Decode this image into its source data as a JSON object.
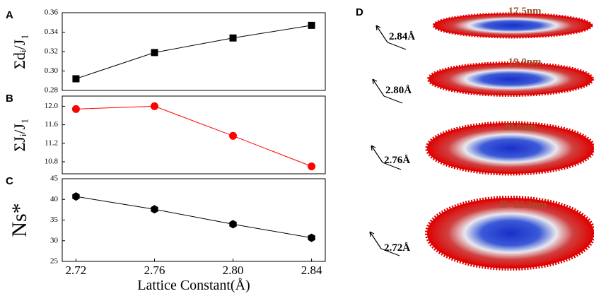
{
  "chart_data": [
    {
      "type": "line",
      "panel_label": "A",
      "ylabel": "Σdᵢ/J₁",
      "x": [
        2.72,
        2.76,
        2.8,
        2.84
      ],
      "values": [
        0.292,
        0.319,
        0.334,
        0.347
      ],
      "color": "#000000",
      "marker": "square",
      "xlim": [
        2.713,
        2.847
      ],
      "ylim": [
        0.28,
        0.36
      ],
      "yticks": [
        0.28,
        {
          "value": 0.3,
          "label": "0.30"
        },
        0.32,
        0.34,
        0.36
      ]
    },
    {
      "type": "line",
      "panel_label": "B",
      "ylabel": "ΣJᵢ/J₁",
      "x": [
        2.72,
        2.76,
        2.8,
        2.84
      ],
      "values": [
        11.94,
        12.0,
        11.36,
        10.7
      ],
      "color": "#ff0000",
      "marker": "circle",
      "xlim": [
        2.713,
        2.847
      ],
      "ylim": [
        10.54,
        12.22
      ],
      "yticks": [
        10.8,
        11.2,
        11.6,
        {
          "value": 12,
          "label": "12.0"
        }
      ]
    },
    {
      "type": "line",
      "panel_label": "C",
      "ylabel": "Ns*",
      "xlabel": "Lattice Constant(Å)",
      "x": [
        2.72,
        2.76,
        2.8,
        2.84
      ],
      "values": [
        40.7,
        37.6,
        34.0,
        30.7
      ],
      "color": "#000000",
      "marker": "hexagon",
      "xlim": [
        2.713,
        2.847
      ],
      "ylim": [
        25,
        45
      ],
      "yticks": [
        25,
        30,
        35,
        40,
        45
      ],
      "xticks": [
        2.72,
        2.76,
        {
          "value": 2.8,
          "label": "2.80"
        },
        2.84
      ]
    }
  ],
  "panel_d": {
    "label": "D",
    "items": [
      {
        "size": "17.5nm",
        "lattice": "2.84Å"
      },
      {
        "size": "19.0nm",
        "lattice": "2.80Å"
      },
      {
        "size": "20.8nm",
        "lattice": "2.76Å"
      },
      {
        "size": "D=22.2nm",
        "lattice": "2.72Å"
      }
    ]
  }
}
